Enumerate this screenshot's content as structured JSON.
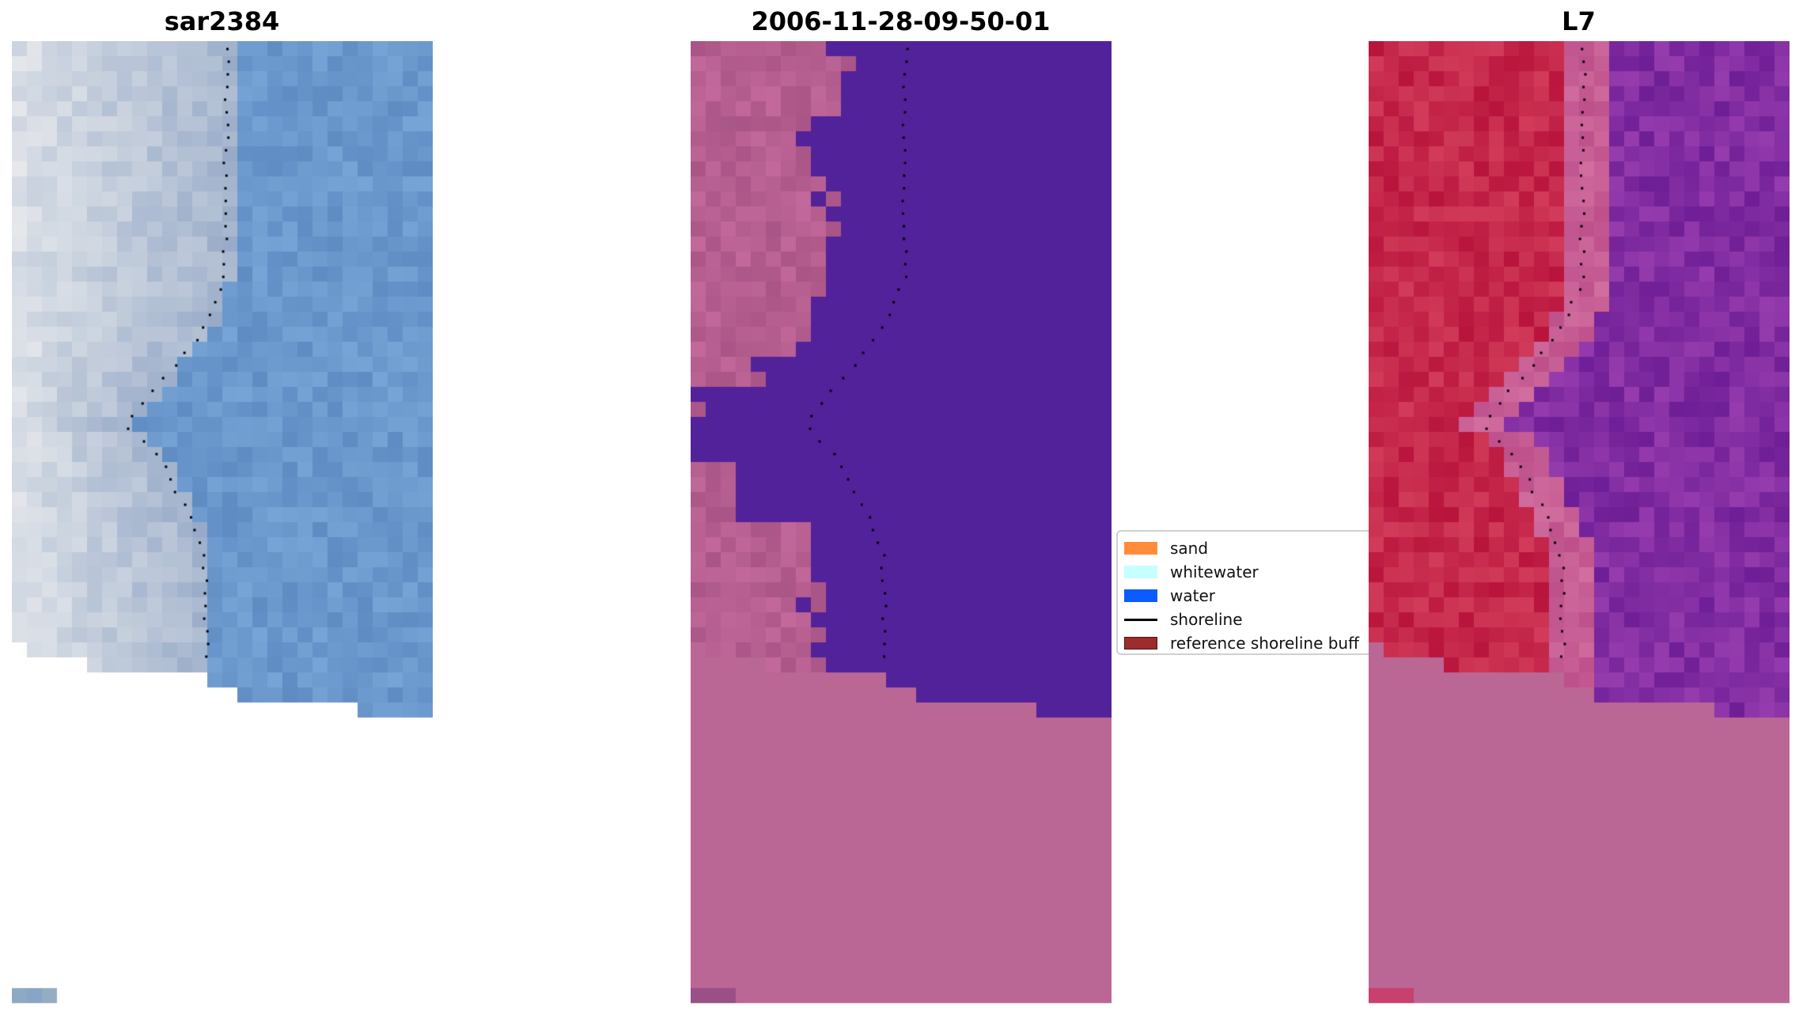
{
  "panels": [
    {
      "title": "sar2384",
      "kind": "rgb"
    },
    {
      "title": "2006-11-28-09-50-01",
      "kind": "classified"
    },
    {
      "title": "L7",
      "kind": "index"
    }
  ],
  "legend": {
    "items": [
      {
        "label": "sand",
        "color": "#ff8c3a",
        "type": "patch"
      },
      {
        "label": "whitewater",
        "color": "#c6ffff",
        "type": "patch"
      },
      {
        "label": "water",
        "color": "#0a5cff",
        "type": "patch"
      },
      {
        "label": "shoreline",
        "color": "#000000",
        "type": "line"
      },
      {
        "label": "reference shoreline buff",
        "color": "#9b2d2d",
        "type": "patch"
      }
    ]
  },
  "colors": {
    "nodata_overlay": "#bb6795",
    "classified_water": "#52229a",
    "classified_land": "#b06090",
    "index_land": "#c2184a",
    "index_water": "#7a1f9c"
  }
}
